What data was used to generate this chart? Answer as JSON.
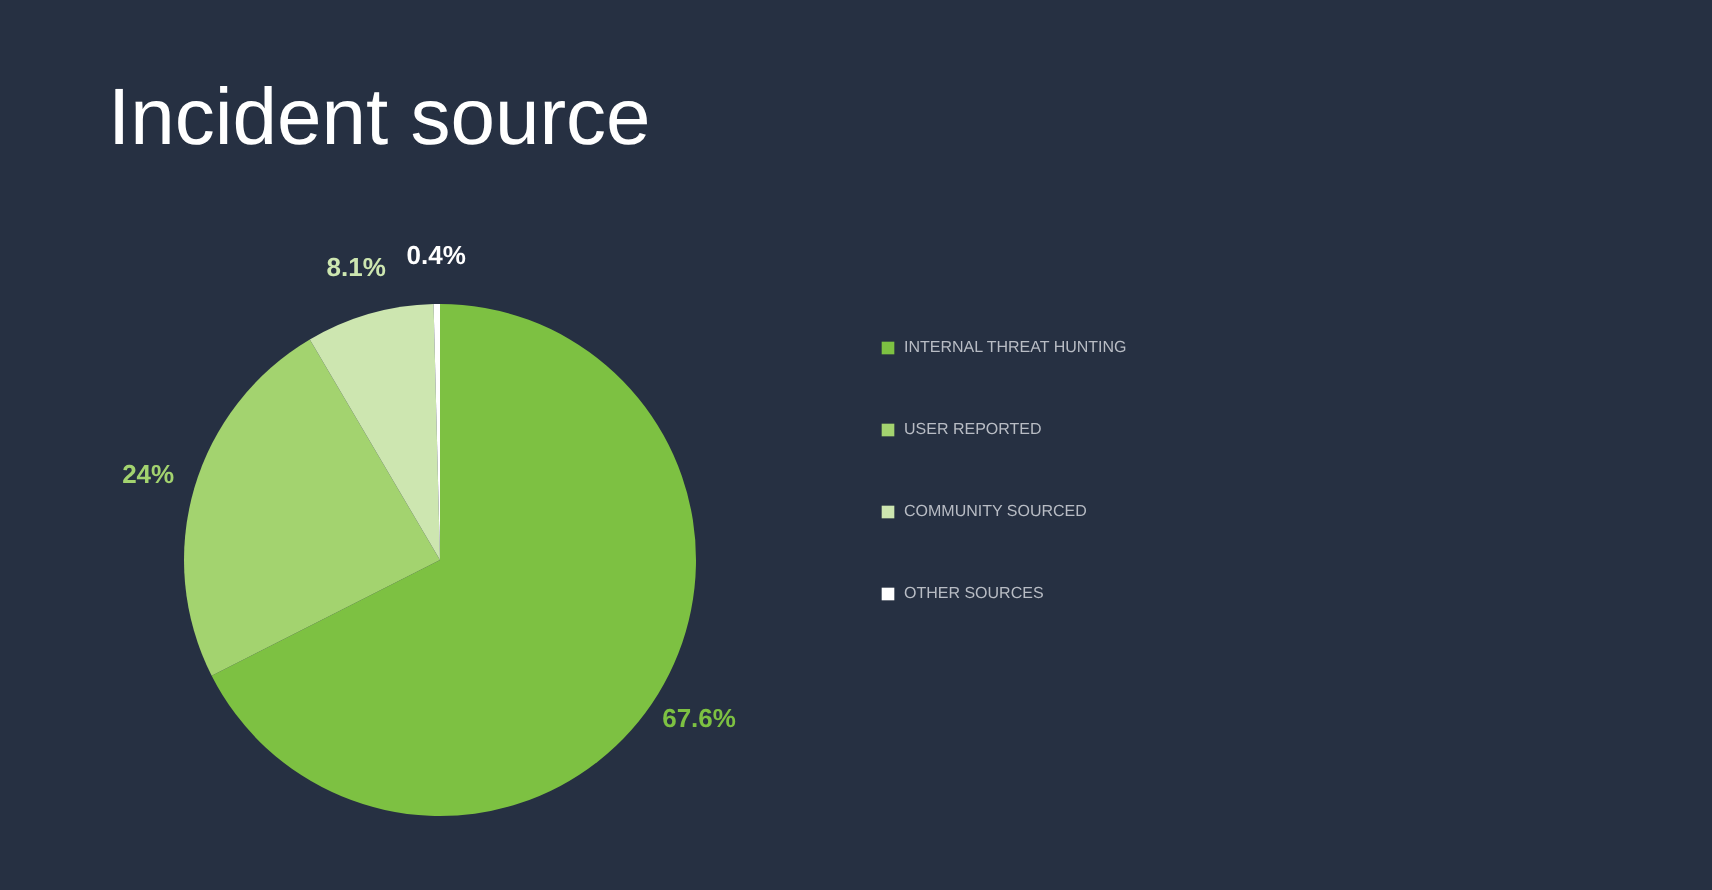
{
  "chart_data": {
    "type": "pie",
    "title": "Incident source",
    "categories": [
      "INTERNAL THREAT HUNTING",
      "USER REPORTED",
      "COMMUNITY SOURCED",
      "OTHER SOURCES"
    ],
    "values": [
      67.6,
      24,
      8.1,
      0.4
    ],
    "colors": [
      "#7dc142",
      "#a3d36f",
      "#cde6b0",
      "#ffffff"
    ],
    "value_labels": [
      "67.6%",
      "24%",
      "8.1%",
      "0.4%"
    ],
    "legend": "right"
  }
}
